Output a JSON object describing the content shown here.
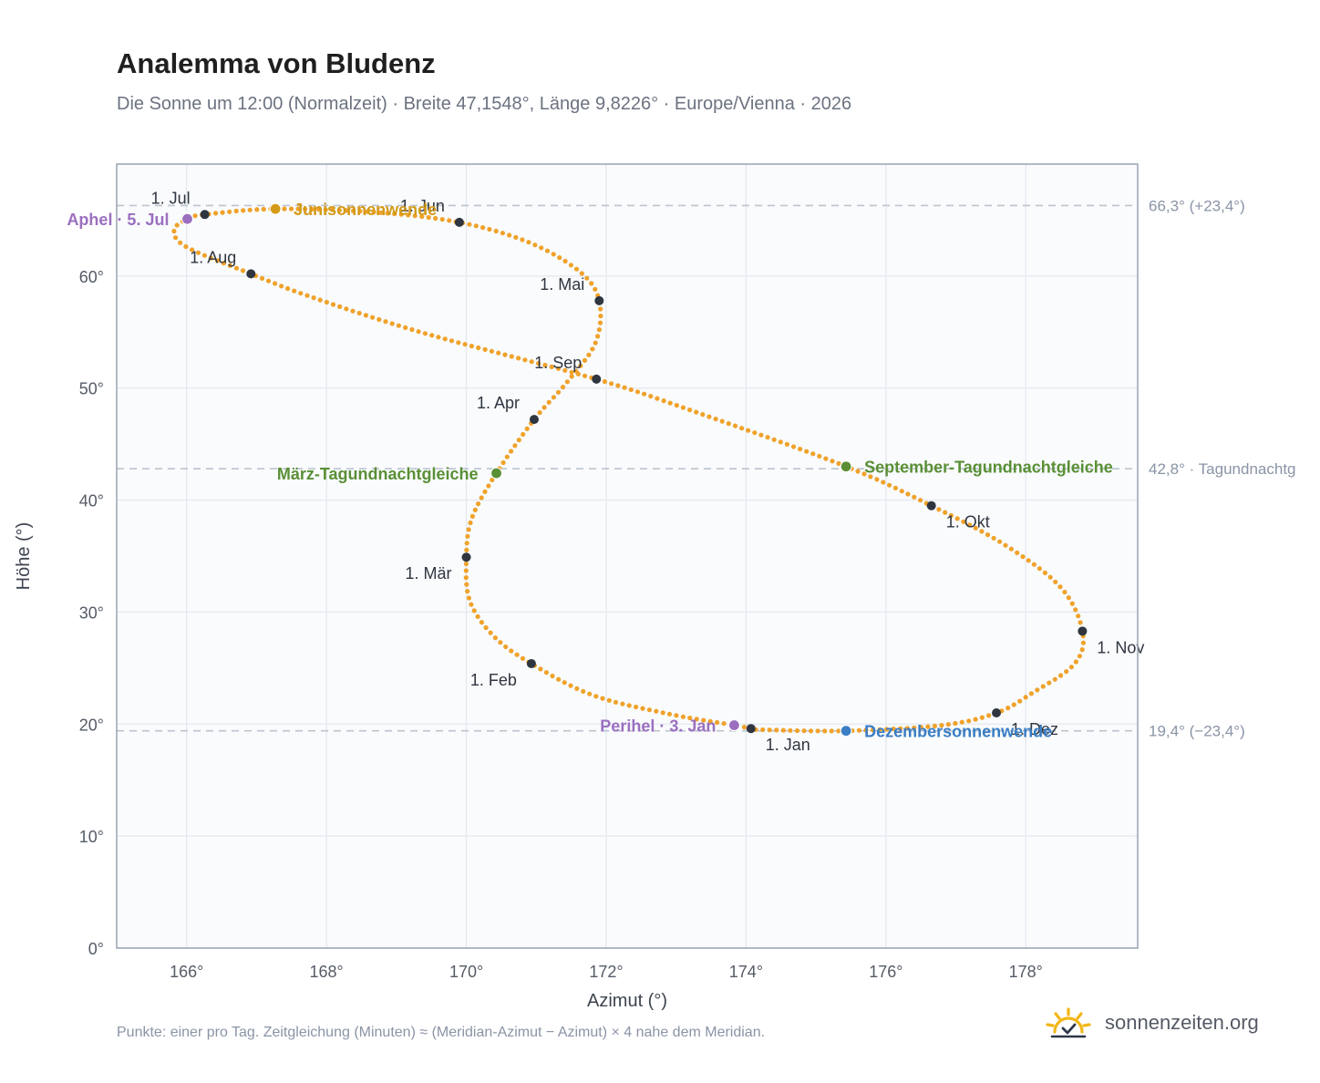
{
  "title": "Analemma von Bludenz",
  "subtitle": "Die Sonne um 12:00 (Normalzeit) · Breite 47,1548°, Länge 9,8226° · Europe/Vienna · 2026",
  "footnote": "Punkte: einer pro Tag. Zeitgleichung (Minuten) ≈ (Meridian-Azimut − Azimut) × 4 nahe dem Meridian.",
  "brand": {
    "name": "sonnenzeiten.org",
    "icon": "sun-logo-icon"
  },
  "colors": {
    "curve": "#f0a22a",
    "month_point": "#2f3640",
    "solstice_june": "#d49a17",
    "solstice_december": "#3a7dc4",
    "equinox": "#5a8f35",
    "apsis": "#9b6fbf",
    "plot_bg": "#f9fbfd",
    "grid": "#e3e8ee",
    "axis": "#9aa4b2",
    "ref_line": "#bcc4ce"
  },
  "chart_data": {
    "type": "scatter",
    "xlabel": "Azimut (°)",
    "ylabel": "Höhe (°)",
    "xlim": [
      165.0,
      179.6
    ],
    "ylim": [
      0,
      70
    ],
    "xticks": [
      166,
      168,
      170,
      172,
      174,
      176,
      178
    ],
    "yticks": [
      0,
      10,
      20,
      30,
      40,
      50,
      60
    ],
    "xtick_labels": [
      "166°",
      "168°",
      "170°",
      "172°",
      "174°",
      "176°",
      "178°"
    ],
    "ytick_labels": [
      "0°",
      "10°",
      "20°",
      "30°",
      "40°",
      "50°",
      "60°"
    ],
    "grid": true,
    "series": [
      {
        "description_style": "one dot per day",
        "points": [
          {
            "date": "01-01",
            "az": 174.07,
            "alt": 19.6
          },
          {
            "date": "01-03",
            "az": 173.83,
            "alt": 19.9
          },
          {
            "date": "01-10",
            "az": 172.9,
            "alt": 20.9
          },
          {
            "date": "01-20",
            "az": 171.8,
            "alt": 22.6
          },
          {
            "date": "02-01",
            "az": 170.93,
            "alt": 25.4
          },
          {
            "date": "02-10",
            "az": 170.4,
            "alt": 27.8
          },
          {
            "date": "02-20",
            "az": 170.05,
            "alt": 31.0
          },
          {
            "date": "03-01",
            "az": 170.0,
            "alt": 34.9
          },
          {
            "date": "03-10",
            "az": 170.08,
            "alt": 38.4
          },
          {
            "date": "03-20",
            "az": 170.43,
            "alt": 42.4
          },
          {
            "date": "04-01",
            "az": 170.97,
            "alt": 47.2
          },
          {
            "date": "04-10",
            "az": 171.45,
            "alt": 50.6
          },
          {
            "date": "04-20",
            "az": 171.85,
            "alt": 54.1
          },
          {
            "date": "05-01",
            "az": 171.9,
            "alt": 57.8
          },
          {
            "date": "05-10",
            "az": 171.62,
            "alt": 60.4
          },
          {
            "date": "05-20",
            "az": 170.9,
            "alt": 63.0
          },
          {
            "date": "06-01",
            "az": 169.9,
            "alt": 64.8
          },
          {
            "date": "06-10",
            "az": 168.7,
            "alt": 65.7
          },
          {
            "date": "06-21",
            "az": 167.27,
            "alt": 66.0
          },
          {
            "date": "07-01",
            "az": 166.26,
            "alt": 65.5
          },
          {
            "date": "07-05",
            "az": 166.01,
            "alt": 65.1
          },
          {
            "date": "07-12",
            "az": 165.82,
            "alt": 64.1
          },
          {
            "date": "07-20",
            "az": 166.0,
            "alt": 62.6
          },
          {
            "date": "08-01",
            "az": 166.92,
            "alt": 60.2
          },
          {
            "date": "08-10",
            "az": 167.8,
            "alt": 58.1
          },
          {
            "date": "08-20",
            "az": 169.4,
            "alt": 54.9
          },
          {
            "date": "09-01",
            "az": 171.86,
            "alt": 50.8
          },
          {
            "date": "09-10",
            "az": 173.4,
            "alt": 47.6
          },
          {
            "date": "09-22",
            "az": 175.43,
            "alt": 43.0
          },
          {
            "date": "10-01",
            "az": 176.65,
            "alt": 39.5
          },
          {
            "date": "10-10",
            "az": 177.7,
            "alt": 36.0
          },
          {
            "date": "10-20",
            "az": 178.5,
            "alt": 32.2
          },
          {
            "date": "11-01",
            "az": 178.81,
            "alt": 28.3
          },
          {
            "date": "11-10",
            "az": 178.7,
            "alt": 25.4
          },
          {
            "date": "11-20",
            "az": 178.1,
            "alt": 22.8
          },
          {
            "date": "12-01",
            "az": 177.58,
            "alt": 21.0
          },
          {
            "date": "12-10",
            "az": 176.8,
            "alt": 19.9
          },
          {
            "date": "12-21",
            "az": 175.43,
            "alt": 19.4
          },
          {
            "date": "12-31",
            "az": 174.2,
            "alt": 19.5
          }
        ]
      }
    ],
    "month_points": [
      {
        "label": "1. Jan",
        "az": 174.07,
        "alt": 19.6,
        "anchor": "below-right"
      },
      {
        "label": "1. Feb",
        "az": 170.93,
        "alt": 25.4,
        "anchor": "below-left"
      },
      {
        "label": "1. Mär",
        "az": 170.0,
        "alt": 34.9,
        "anchor": "below-left"
      },
      {
        "label": "1. Apr",
        "az": 170.97,
        "alt": 47.2,
        "anchor": "above-left"
      },
      {
        "label": "1. Mai",
        "az": 171.9,
        "alt": 57.8,
        "anchor": "above-left"
      },
      {
        "label": "1. Jun",
        "az": 169.9,
        "alt": 64.8,
        "anchor": "above-left"
      },
      {
        "label": "1. Jul",
        "az": 166.26,
        "alt": 65.5,
        "anchor": "above-left"
      },
      {
        "label": "1. Aug",
        "az": 166.92,
        "alt": 60.2,
        "anchor": "above-left"
      },
      {
        "label": "1. Sep",
        "az": 171.86,
        "alt": 50.8,
        "anchor": "above-left"
      },
      {
        "label": "1. Okt",
        "az": 176.65,
        "alt": 39.5,
        "anchor": "below-right"
      },
      {
        "label": "1. Nov",
        "az": 178.81,
        "alt": 28.3,
        "anchor": "below-right"
      },
      {
        "label": "1. Dez",
        "az": 177.58,
        "alt": 21.0,
        "anchor": "below-right"
      }
    ],
    "events": [
      {
        "label": "Junisonnenwende",
        "az": 167.27,
        "alt": 66.0,
        "color": "#d49a17",
        "side": "right"
      },
      {
        "label": "Dezembersonnenwende",
        "az": 175.43,
        "alt": 19.4,
        "color": "#3a7dc4",
        "side": "right"
      },
      {
        "label": "März-Tagundnachtgleiche",
        "az": 170.43,
        "alt": 42.4,
        "color": "#5a8f35",
        "side": "left"
      },
      {
        "label": "September-Tagundnachtgleiche",
        "az": 175.43,
        "alt": 43.0,
        "color": "#5a8f35",
        "side": "right"
      },
      {
        "label": "Aphel · 5. Jul",
        "az": 166.01,
        "alt": 65.1,
        "color": "#9b6fbf",
        "side": "left"
      },
      {
        "label": "Perihel · 3. Jan",
        "az": 173.83,
        "alt": 19.9,
        "color": "#9b6fbf",
        "side": "left"
      }
    ],
    "reference_lines": [
      {
        "alt": 66.3,
        "label": "66,3° (+23,4°)"
      },
      {
        "alt": 42.8,
        "label": "42,8° · Tagundnachtg"
      },
      {
        "alt": 19.4,
        "label": "19,4° (−23,4°)"
      }
    ]
  }
}
